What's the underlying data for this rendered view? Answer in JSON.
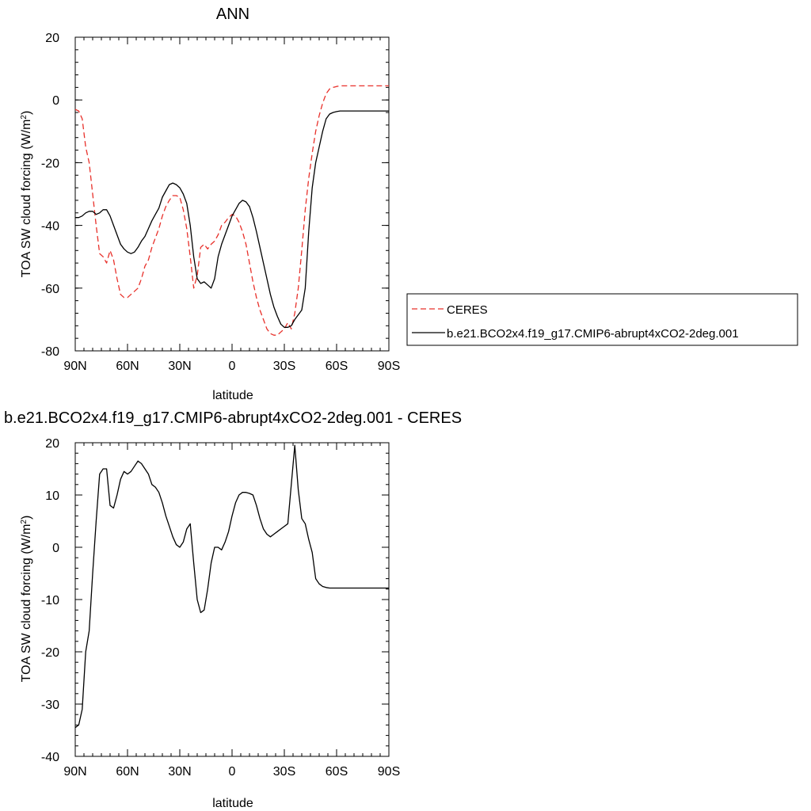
{
  "colors": {
    "ceres": "#e8302a",
    "model": "#000000",
    "background": "#ffffff"
  },
  "chart_data": [
    {
      "type": "line",
      "title": "ANN",
      "xlabel": "latitude",
      "ylabel": "TOA SW cloud forcing (W/m²)",
      "xlim": [
        90,
        -90
      ],
      "ylim": [
        -80,
        20
      ],
      "x_ticks": [
        {
          "value": 90,
          "label": "90N"
        },
        {
          "value": 60,
          "label": "60N"
        },
        {
          "value": 30,
          "label": "30N"
        },
        {
          "value": 0,
          "label": "0"
        },
        {
          "value": -30,
          "label": "30S"
        },
        {
          "value": -60,
          "label": "60S"
        },
        {
          "value": -90,
          "label": "90S"
        }
      ],
      "y_ticks": [
        {
          "value": 20,
          "label": "20"
        },
        {
          "value": 0,
          "label": "0"
        },
        {
          "value": -20,
          "label": "-20"
        },
        {
          "value": -40,
          "label": "-40"
        },
        {
          "value": -60,
          "label": "-60"
        },
        {
          "value": -80,
          "label": "-80"
        }
      ],
      "grid": false,
      "legend_position": "right",
      "series": [
        {
          "name": "CERES",
          "color": "#e8302a",
          "dash": true,
          "x": [
            90,
            88,
            86,
            84,
            82,
            80,
            78,
            76,
            74,
            72,
            70,
            68,
            66,
            64,
            62,
            60,
            58,
            56,
            54,
            52,
            50,
            48,
            46,
            44,
            42,
            40,
            38,
            36,
            34,
            32,
            30,
            28,
            26,
            24,
            22,
            20,
            18,
            16,
            14,
            12,
            10,
            8,
            6,
            4,
            2,
            0,
            -2,
            -4,
            -6,
            -8,
            -10,
            -12,
            -14,
            -16,
            -18,
            -20,
            -22,
            -24,
            -26,
            -28,
            -30,
            -32,
            -34,
            -36,
            -38,
            -40,
            -42,
            -44,
            -46,
            -48,
            -50,
            -52,
            -54,
            -56,
            -58,
            -60,
            -62,
            -64,
            -66,
            -68,
            -70,
            -72,
            -74,
            -76,
            -78,
            -80,
            -82,
            -84,
            -86,
            -88,
            -90
          ],
          "y": [
            -3,
            -3.5,
            -6,
            -15,
            -20,
            -30,
            -40,
            -49,
            -50,
            -52,
            -48,
            -51,
            -57,
            -62,
            -63,
            -63,
            -62,
            -61,
            -60,
            -57,
            -53,
            -51,
            -47,
            -44,
            -41,
            -37,
            -34,
            -32,
            -30.5,
            -30.5,
            -31,
            -35,
            -41,
            -50,
            -60,
            -56,
            -47,
            -46,
            -47.5,
            -46,
            -45,
            -43,
            -40,
            -39,
            -37.5,
            -36.5,
            -37,
            -39,
            -42,
            -46,
            -52,
            -58,
            -63,
            -67,
            -70,
            -73,
            -74.5,
            -75,
            -75,
            -74,
            -73,
            -71,
            -73,
            -68,
            -60,
            -48,
            -35,
            -25,
            -17,
            -10,
            -5,
            -1,
            2,
            3.5,
            4,
            4.3,
            4.5,
            4.5,
            4.5,
            4.5,
            4.5,
            4.5,
            4.5,
            4.5,
            4.5,
            4.5,
            4.5,
            4.5,
            4.5,
            4.5,
            4.5
          ]
        },
        {
          "name": "b.e21.BCO2x4.f19_g17.CMIP6-abrupt4xCO2-2deg.001",
          "color": "#000000",
          "dash": false,
          "x": [
            90,
            88,
            86,
            84,
            82,
            80,
            78,
            76,
            74,
            72,
            70,
            68,
            66,
            64,
            62,
            60,
            58,
            56,
            54,
            52,
            50,
            48,
            46,
            44,
            42,
            40,
            38,
            36,
            34,
            32,
            30,
            28,
            26,
            24,
            22,
            20,
            18,
            16,
            14,
            12,
            10,
            8,
            6,
            4,
            2,
            0,
            -2,
            -4,
            -6,
            -8,
            -10,
            -12,
            -14,
            -16,
            -18,
            -20,
            -22,
            -24,
            -26,
            -28,
            -30,
            -32,
            -34,
            -36,
            -38,
            -40,
            -42,
            -44,
            -46,
            -48,
            -50,
            -52,
            -54,
            -56,
            -58,
            -60,
            -62,
            -64,
            -66,
            -68,
            -70,
            -72,
            -74,
            -76,
            -78,
            -80,
            -82,
            -84,
            -86,
            -88,
            -90
          ],
          "y": [
            -37.5,
            -37.5,
            -37,
            -36,
            -35.5,
            -35.5,
            -36.5,
            -36,
            -35,
            -35,
            -37,
            -40,
            -43,
            -46,
            -47.5,
            -48.5,
            -49,
            -48.5,
            -47,
            -45,
            -43.5,
            -41,
            -38.5,
            -36.5,
            -34.5,
            -31,
            -29,
            -27,
            -26.5,
            -27,
            -28,
            -30,
            -33,
            -40,
            -50,
            -57,
            -58.5,
            -58,
            -59,
            -60,
            -57,
            -50,
            -46,
            -43,
            -40,
            -37,
            -35,
            -33,
            -32,
            -32.5,
            -34,
            -37.5,
            -42,
            -47,
            -52,
            -57,
            -62,
            -66,
            -69,
            -71.5,
            -72.5,
            -72.5,
            -72,
            -70,
            -68.5,
            -67,
            -60,
            -42,
            -28,
            -20,
            -15,
            -10,
            -6,
            -4.5,
            -4,
            -3.7,
            -3.5,
            -3.5,
            -3.5,
            -3.5,
            -3.5,
            -3.5,
            -3.5,
            -3.5,
            -3.5,
            -3.5,
            -3.5,
            -3.5,
            -3.5,
            -3.5,
            -3.5
          ]
        }
      ]
    },
    {
      "type": "line",
      "title": "b.e21.BCO2x4.f19_g17.CMIP6-abrupt4xCO2-2deg.001 - CERES",
      "xlabel": "latitude",
      "ylabel": "TOA SW cloud forcing (W/m²)",
      "xlim": [
        90,
        -90
      ],
      "ylim": [
        -40,
        20
      ],
      "x_ticks": [
        {
          "value": 90,
          "label": "90N"
        },
        {
          "value": 60,
          "label": "60N"
        },
        {
          "value": 30,
          "label": "30N"
        },
        {
          "value": 0,
          "label": "0"
        },
        {
          "value": -30,
          "label": "30S"
        },
        {
          "value": -60,
          "label": "60S"
        },
        {
          "value": -90,
          "label": "90S"
        }
      ],
      "y_ticks": [
        {
          "value": 20,
          "label": "20"
        },
        {
          "value": 10,
          "label": "10"
        },
        {
          "value": 0,
          "label": "0"
        },
        {
          "value": -10,
          "label": "-10"
        },
        {
          "value": -20,
          "label": "-20"
        },
        {
          "value": -30,
          "label": "-30"
        },
        {
          "value": -40,
          "label": "-40"
        }
      ],
      "grid": false,
      "series": [
        {
          "color": "#000000",
          "dash": false,
          "x": [
            90,
            88,
            86,
            84,
            82,
            80,
            78,
            76,
            74,
            72,
            70,
            68,
            66,
            64,
            62,
            60,
            58,
            56,
            54,
            52,
            50,
            48,
            46,
            44,
            42,
            40,
            38,
            36,
            34,
            32,
            30,
            28,
            26,
            24,
            22,
            20,
            18,
            16,
            14,
            12,
            10,
            8,
            6,
            4,
            2,
            0,
            -2,
            -4,
            -6,
            -8,
            -10,
            -12,
            -14,
            -16,
            -18,
            -20,
            -22,
            -24,
            -26,
            -28,
            -30,
            -32,
            -34,
            -36,
            -38,
            -40,
            -42,
            -44,
            -46,
            -48,
            -50,
            -52,
            -54,
            -56,
            -58,
            -60,
            -62,
            -64,
            -66,
            -68,
            -70,
            -72,
            -74,
            -76,
            -78,
            -80,
            -82,
            -84,
            -86,
            -88,
            -90
          ],
          "y": [
            -34.5,
            -34,
            -31,
            -20,
            -16,
            -5,
            5,
            14,
            15,
            15,
            8,
            7.5,
            10,
            13,
            14.5,
            14,
            14.5,
            15.5,
            16.5,
            16,
            15,
            14,
            12,
            11.5,
            10.5,
            8.5,
            6,
            4,
            2,
            0.5,
            0,
            1,
            3.5,
            4.5,
            -3,
            -10,
            -12.5,
            -12,
            -8,
            -3,
            0,
            0,
            -0.5,
            1,
            3,
            6,
            8.5,
            10,
            10.5,
            10.5,
            10.3,
            10,
            8,
            5.5,
            3.5,
            2.5,
            2,
            2.5,
            3,
            3.5,
            4,
            4.5,
            12,
            19.5,
            11,
            5.5,
            4.5,
            1.5,
            -1,
            -6,
            -7,
            -7.5,
            -7.7,
            -7.8,
            -7.8,
            -7.8,
            -7.8,
            -7.8,
            -7.8,
            -7.8,
            -7.8,
            -7.8,
            -7.8,
            -7.8,
            -7.8,
            -7.8,
            -7.8,
            -7.8,
            -7.8,
            -7.8,
            -7.8
          ]
        }
      ]
    }
  ]
}
